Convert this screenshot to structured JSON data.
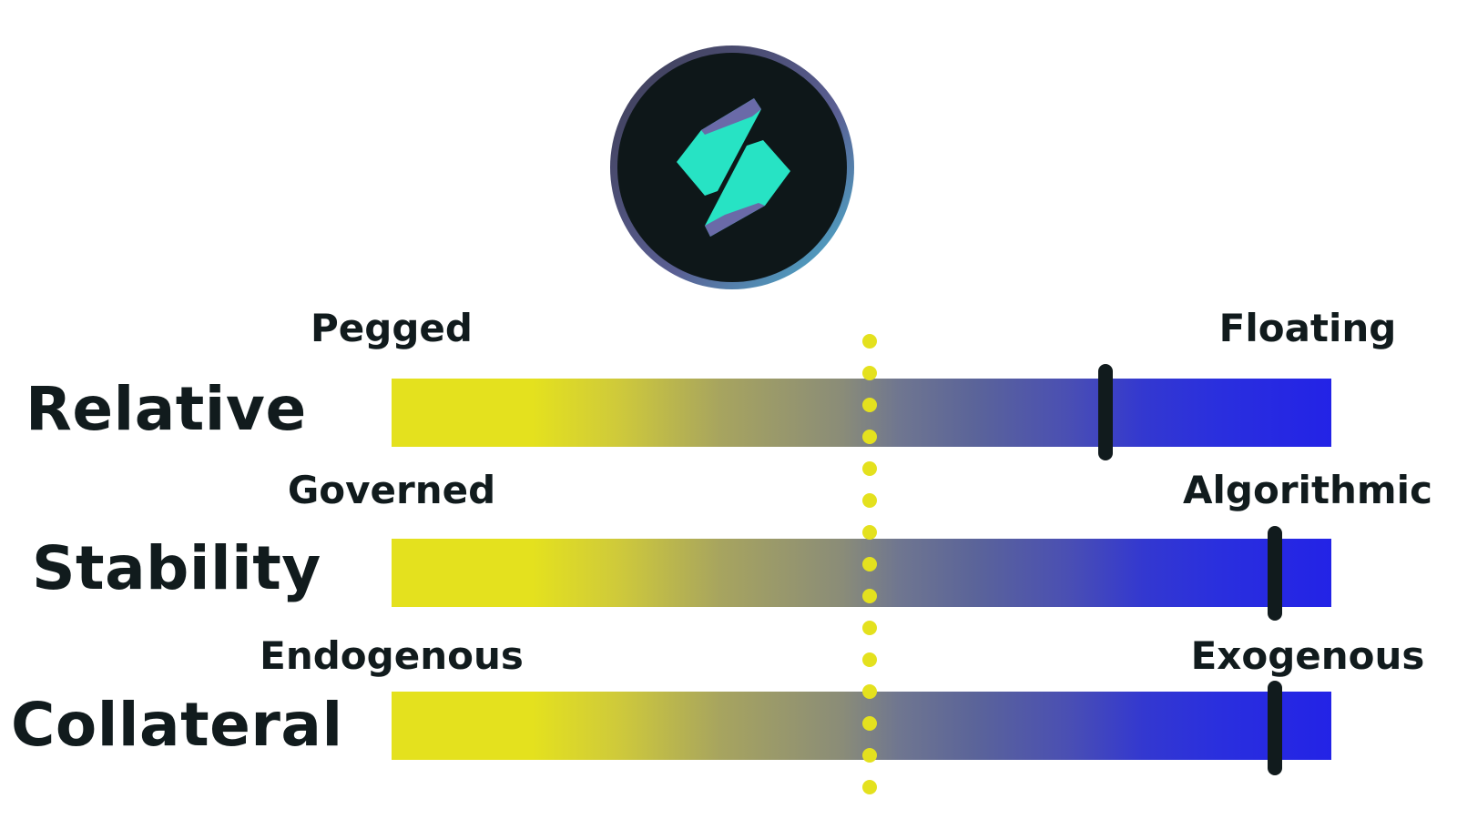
{
  "logo": {
    "icon": "stablecoin-token-logo"
  },
  "rows": [
    {
      "name": "relative",
      "axis_label": "Relative",
      "left_label": "Pegged",
      "right_label": "Floating",
      "position": 0.76
    },
    {
      "name": "stability",
      "axis_label": "Stability",
      "left_label": "Governed",
      "right_label": "Algorithmic",
      "position": 0.94
    },
    {
      "name": "collateral",
      "axis_label": "Collateral",
      "left_label": "Endogenous",
      "right_label": "Exogenous",
      "position": 0.94
    }
  ],
  "colors": {
    "left_end": "#e4e11e",
    "right_end": "#2323e6",
    "center_dots": "#e4e11e",
    "marker": "#111b1d",
    "text": "#111b1d",
    "logo_background": "#0e1719",
    "logo_accent": "#27e3c4"
  }
}
